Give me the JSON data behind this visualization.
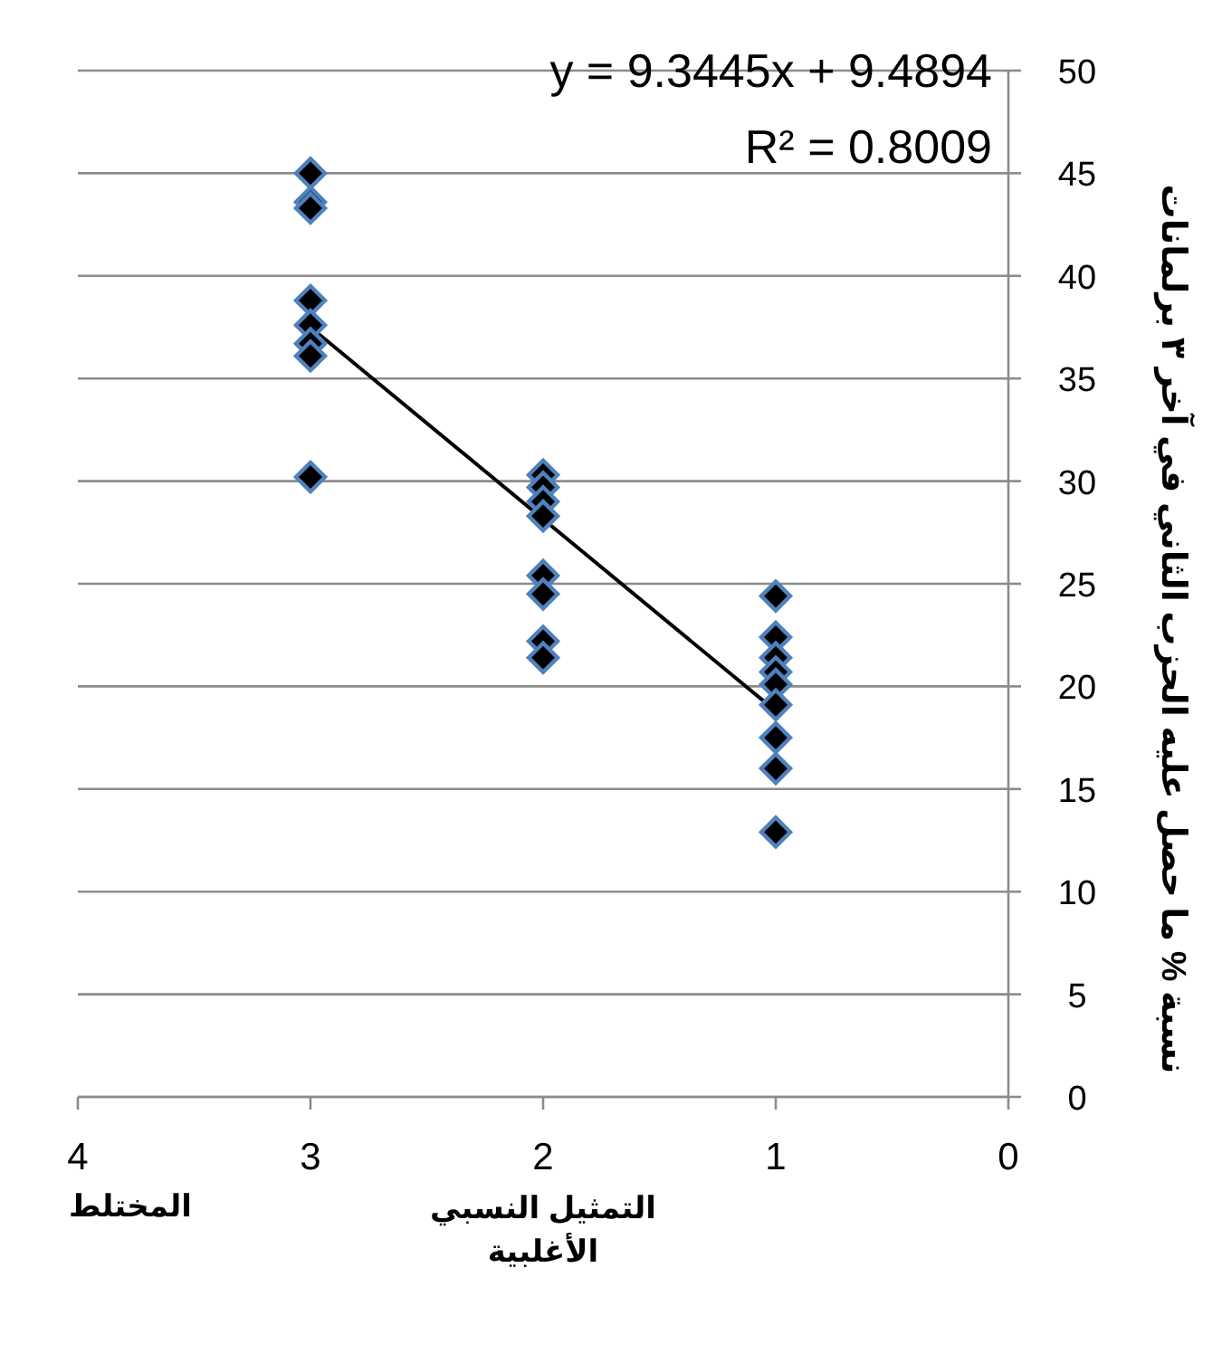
{
  "chart_data": {
    "type": "scatter",
    "xlabel": "التمثيل النسبي الأغلبية",
    "ylabel": "نسبة % ما حصل عليه الحزب الثاني في آخر ٣ برلمانات",
    "annotations": [
      "y = 9.3445x + 9.4894",
      "R² = 0.8009",
      "المختلط"
    ],
    "series": [
      {
        "color": "#000000",
        "x": [
          3,
          3,
          3,
          3,
          3,
          3,
          3,
          3,
          2,
          2,
          2,
          2,
          2,
          2,
          2,
          2,
          1,
          1,
          1,
          1,
          1,
          1,
          1,
          1,
          1
        ],
        "values": [
          45.0,
          43.6,
          43.3,
          38.8,
          37.6,
          36.7,
          36.1,
          30.2,
          30.3,
          29.7,
          29.0,
          28.3,
          25.4,
          24.5,
          22.2,
          21.4,
          24.4,
          22.4,
          21.4,
          20.7,
          20.1,
          19.1,
          17.5,
          16.0,
          12.9
        ]
      },
      {
        "type": "line",
        "color": "#000000",
        "marker": "none",
        "x": [
          3,
          1
        ],
        "values": [
          37.5,
          18.8
        ]
      }
    ],
    "marker": "diamond",
    "xlim": [
      4,
      0
    ],
    "xticks": [
      4,
      3,
      2,
      1,
      0
    ],
    "ylim": [
      0,
      50
    ],
    "yticks": [
      0,
      5,
      10,
      15,
      20,
      25,
      30,
      35,
      40,
      45,
      50
    ],
    "grid": "y"
  }
}
